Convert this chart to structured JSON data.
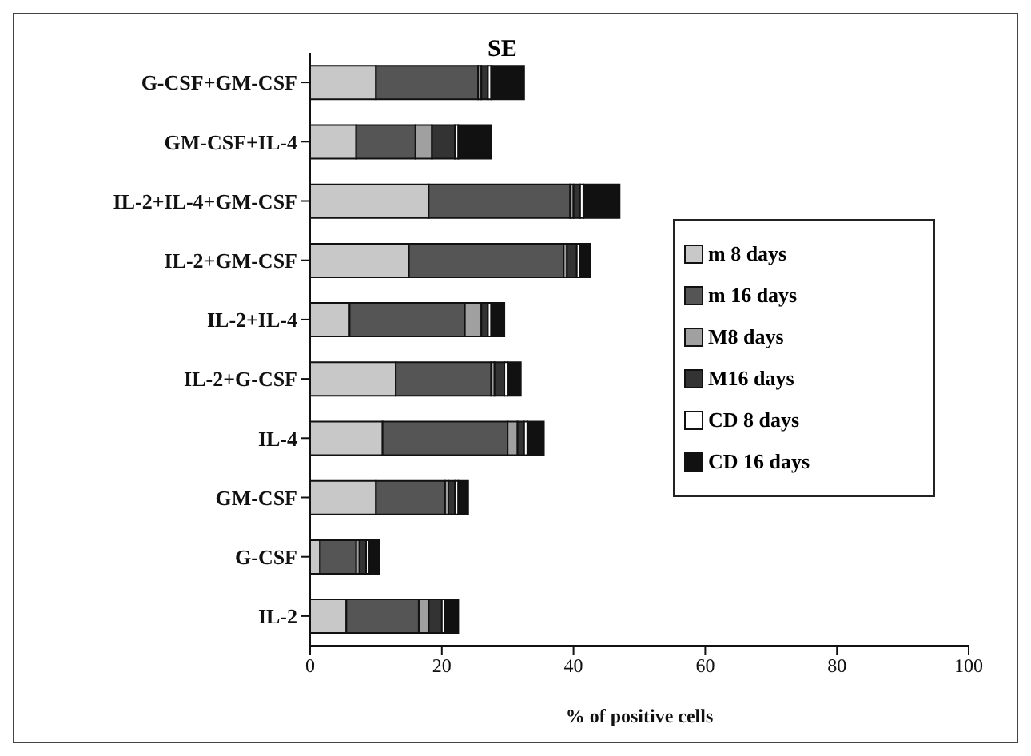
{
  "chart_data": {
    "type": "bar",
    "orientation": "horizontal",
    "stacked": true,
    "title": "SE",
    "xlabel": "% of positive cells",
    "categories": [
      "G-CSF+GM-CSF",
      "GM-CSF+IL-4",
      "IL-2+IL-4+GM-CSF",
      "IL-2+GM-CSF",
      "IL-2+IL-4",
      "IL-2+G-CSF",
      "IL-4",
      "GM-CSF",
      "G-CSF",
      "IL-2"
    ],
    "series": [
      {
        "name": "m 8 days",
        "color": "#c8c8c8",
        "values": [
          10,
          7,
          18,
          15,
          6,
          13,
          11,
          10,
          1.5,
          5.5
        ]
      },
      {
        "name": "m 16 days",
        "color": "#555555",
        "values": [
          15.5,
          9,
          21.5,
          23.5,
          17.5,
          14.5,
          19,
          10.5,
          5.5,
          11
        ]
      },
      {
        "name": "M8 days",
        "color": "#a0a0a0",
        "values": [
          0.5,
          2.5,
          0.5,
          0.5,
          2.5,
          0.5,
          1.5,
          0.5,
          0.5,
          1.5
        ]
      },
      {
        "name": "M16 days",
        "color": "#333333",
        "values": [
          1,
          3.5,
          1,
          1.5,
          1,
          1.5,
          1,
          1,
          1,
          2
        ]
      },
      {
        "name": "CD 8 days",
        "color": "#ffffff",
        "values": [
          0.5,
          0.5,
          0.5,
          0.5,
          0.5,
          0.5,
          0.5,
          0.5,
          0.5,
          0.5
        ]
      },
      {
        "name": "CD 16 days",
        "color": "#111111",
        "values": [
          5,
          5,
          5.5,
          1.5,
          2,
          2,
          2.5,
          1.5,
          1.5,
          2
        ]
      }
    ],
    "xlim": [
      0,
      100
    ],
    "xticks": [
      0,
      20,
      40,
      60,
      80,
      100
    ],
    "legend": "right"
  }
}
